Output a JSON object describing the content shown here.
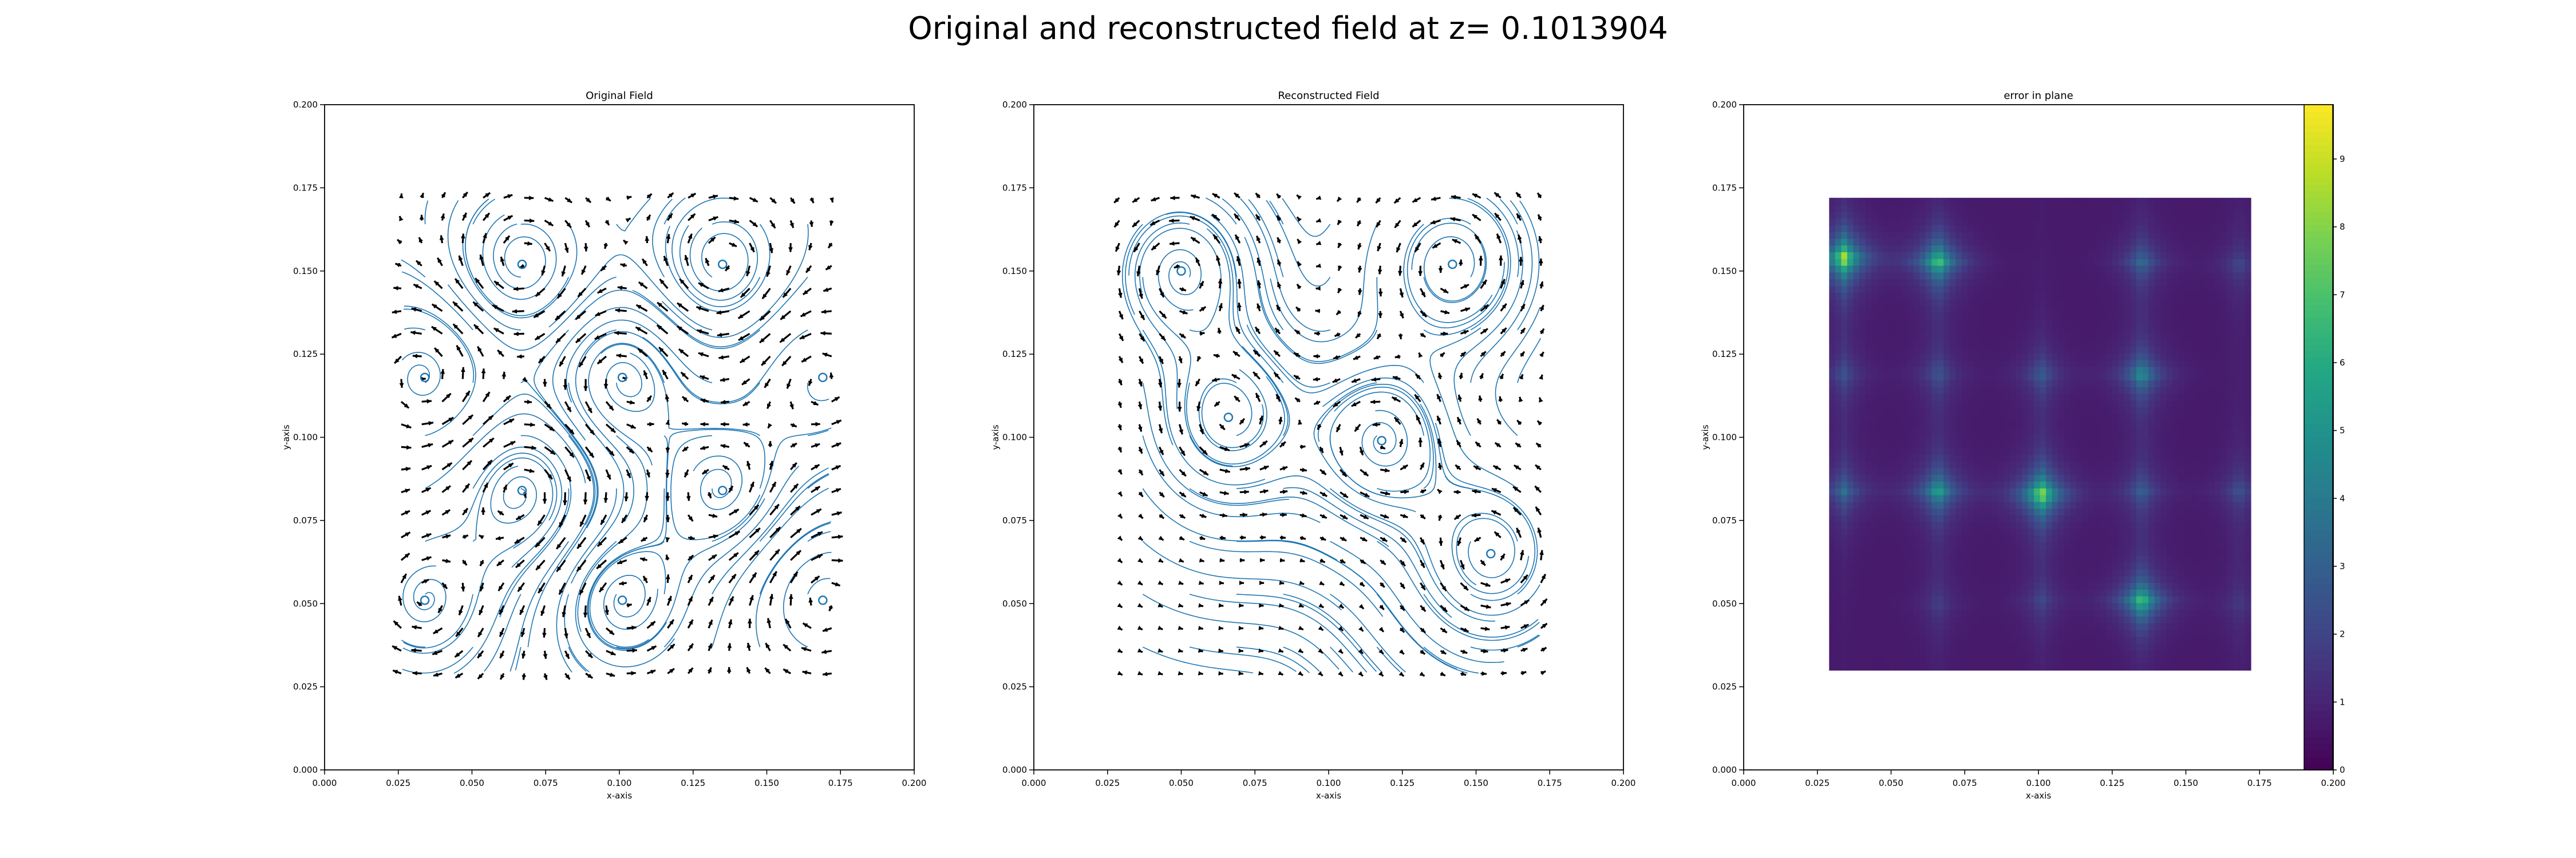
{
  "figure": {
    "suptitle": "Original and reconstructed field at z= 0.1013904"
  },
  "chart_data": [
    {
      "type": "quiver-streamplot",
      "title": "Original Field",
      "xlabel": "x-axis",
      "ylabel": "y-axis",
      "xlim": [
        0.0,
        0.2
      ],
      "ylim": [
        0.0,
        0.2
      ],
      "xticks": [
        "0.000",
        "0.025",
        "0.050",
        "0.075",
        "0.100",
        "0.125",
        "0.150",
        "0.175",
        "0.200"
      ],
      "yticks": [
        "0.000",
        "0.025",
        "0.050",
        "0.075",
        "0.100",
        "0.125",
        "0.150",
        "0.175",
        "0.200"
      ],
      "grid": false,
      "field_extent": {
        "x": [
          0.026,
          0.172
        ],
        "y": [
          0.029,
          0.172
        ]
      },
      "vortex_centers": [
        [
          0.034,
          0.118
        ],
        [
          0.067,
          0.152
        ],
        [
          0.101,
          0.118
        ],
        [
          0.135,
          0.152
        ],
        [
          0.169,
          0.118
        ],
        [
          0.067,
          0.084
        ],
        [
          0.135,
          0.084
        ],
        [
          0.034,
          0.051
        ],
        [
          0.101,
          0.051
        ],
        [
          0.169,
          0.051
        ]
      ],
      "arrow_color": "#000000",
      "streamline_color": "#1f77b4"
    },
    {
      "type": "quiver-streamplot",
      "title": "Reconstructed Field",
      "xlabel": "x-axis",
      "ylabel": "y-axis",
      "xlim": [
        0.0,
        0.2
      ],
      "ylim": [
        0.0,
        0.2
      ],
      "xticks": [
        "0.000",
        "0.025",
        "0.050",
        "0.075",
        "0.100",
        "0.125",
        "0.150",
        "0.175",
        "0.200"
      ],
      "yticks": [
        "0.000",
        "0.025",
        "0.050",
        "0.075",
        "0.100",
        "0.125",
        "0.150",
        "0.175",
        "0.200"
      ],
      "grid": false,
      "field_extent": {
        "x": [
          0.029,
          0.172
        ],
        "y": [
          0.029,
          0.172
        ]
      },
      "vortex_centers": [
        [
          0.066,
          0.106
        ],
        [
          0.118,
          0.099
        ],
        [
          0.142,
          0.152
        ],
        [
          0.05,
          0.15
        ],
        [
          0.155,
          0.065
        ]
      ],
      "arrow_color": "#000000",
      "streamline_color": "#1f77b4"
    },
    {
      "type": "heatmap",
      "title": "error in plane",
      "xlabel": "x-axis",
      "ylabel": "y-axis",
      "xlim": [
        0.0,
        0.2
      ],
      "ylim": [
        0.0,
        0.2
      ],
      "xticks": [
        "0.000",
        "0.025",
        "0.050",
        "0.075",
        "0.100",
        "0.125",
        "0.150",
        "0.175",
        "0.200"
      ],
      "yticks": [
        "0.000",
        "0.025",
        "0.050",
        "0.075",
        "0.100",
        "0.125",
        "0.150",
        "0.175",
        "0.200"
      ],
      "grid": false,
      "colormap": "viridis",
      "data_extent": {
        "x": [
          0.029,
          0.172
        ],
        "y": [
          0.03,
          0.172
        ]
      },
      "colorbar": {
        "range": [
          0,
          9.8
        ],
        "ticks": [
          "0",
          "1",
          "2",
          "3",
          "4",
          "5",
          "6",
          "7",
          "8",
          "9"
        ]
      },
      "hotspots": [
        {
          "x": 0.034,
          "y": 0.154,
          "value": 9.3
        },
        {
          "x": 0.066,
          "y": 0.153,
          "value": 7.5
        },
        {
          "x": 0.101,
          "y": 0.083,
          "value": 9.0
        },
        {
          "x": 0.135,
          "y": 0.051,
          "value": 7.3
        },
        {
          "x": 0.135,
          "y": 0.119,
          "value": 5.0
        },
        {
          "x": 0.066,
          "y": 0.084,
          "value": 5.8
        },
        {
          "x": 0.034,
          "y": 0.084,
          "value": 3.4
        },
        {
          "x": 0.135,
          "y": 0.153,
          "value": 3.4
        },
        {
          "x": 0.135,
          "y": 0.084,
          "value": 2.8
        },
        {
          "x": 0.101,
          "y": 0.119,
          "value": 2.8
        },
        {
          "x": 0.066,
          "y": 0.119,
          "value": 2.4
        },
        {
          "x": 0.034,
          "y": 0.119,
          "value": 2.2
        },
        {
          "x": 0.168,
          "y": 0.084,
          "value": 2.3
        },
        {
          "x": 0.168,
          "y": 0.152,
          "value": 2.0
        },
        {
          "x": 0.101,
          "y": 0.051,
          "value": 1.9
        },
        {
          "x": 0.066,
          "y": 0.05,
          "value": 1.6
        },
        {
          "x": 0.168,
          "y": 0.05,
          "value": 1.4
        }
      ],
      "background_value": 0.7
    }
  ]
}
